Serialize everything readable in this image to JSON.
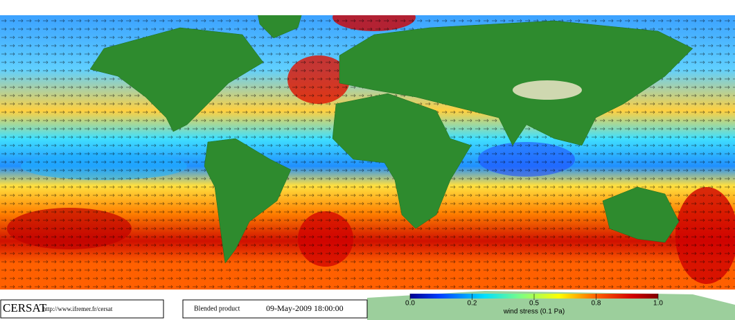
{
  "credits": {
    "logo": "CERSAT",
    "url": "http://www.ifremer.fr/cersat"
  },
  "product": "Blended product",
  "timestamp": "09-May-2009 18:00:00",
  "colorbar": {
    "label": "wind stress (0.1 Pa)",
    "ticks": [
      {
        "value": 0,
        "label": "0.0"
      },
      0.2,
      0.5,
      0.8,
      {
        "value": 1,
        "label": "1.0"
      }
    ]
  }
}
